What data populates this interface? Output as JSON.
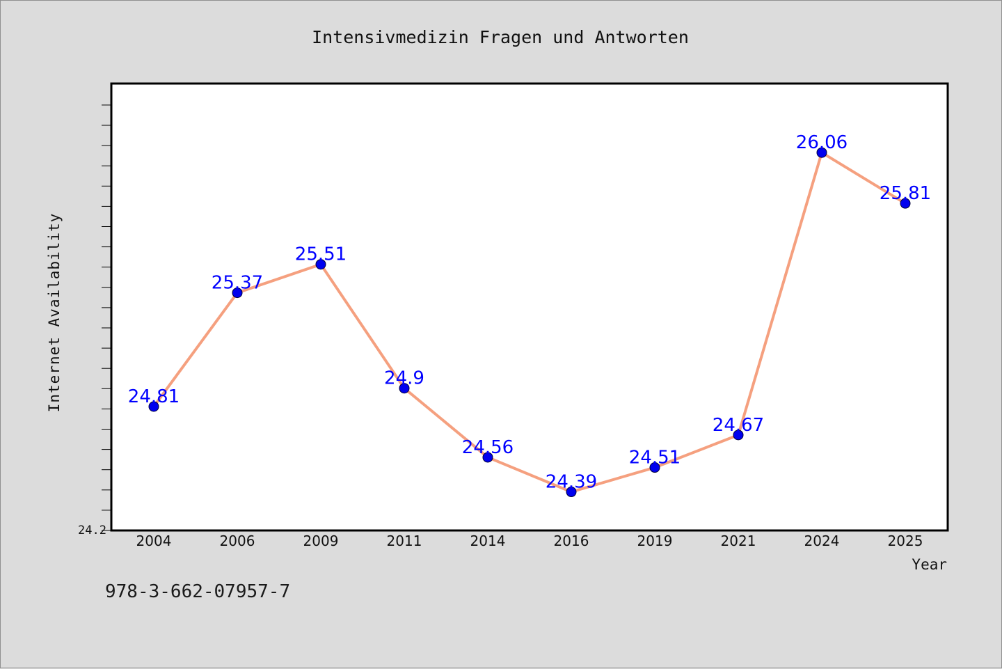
{
  "chart_data": {
    "type": "line",
    "title": "Intensivmedizin Fragen und Antworten",
    "xlabel": "Year",
    "ylabel": "Internet Availability",
    "categories": [
      "2004",
      "2006",
      "2009",
      "2011",
      "2014",
      "2016",
      "2019",
      "2021",
      "2024",
      "2025"
    ],
    "values": [
      24.81,
      25.37,
      25.51,
      24.9,
      24.56,
      24.39,
      24.51,
      24.67,
      26.06,
      25.81
    ],
    "data_labels": [
      "24.81",
      "25.37",
      "25.51",
      "24.9",
      "24.56",
      "24.39",
      "24.51",
      "24.67",
      "26.06",
      "25.81"
    ],
    "y_tick_label": "24.2",
    "ylim": [
      24.2,
      26.4
    ],
    "grid": false,
    "legend": "none",
    "colors": {
      "line": "#f5a07f",
      "marker": "#0000ee",
      "label": "#0000ff",
      "background": "#dcdcdc",
      "plot_bg": "#ffffff"
    }
  },
  "footer": {
    "isbn": "978-3-662-07957-7"
  }
}
